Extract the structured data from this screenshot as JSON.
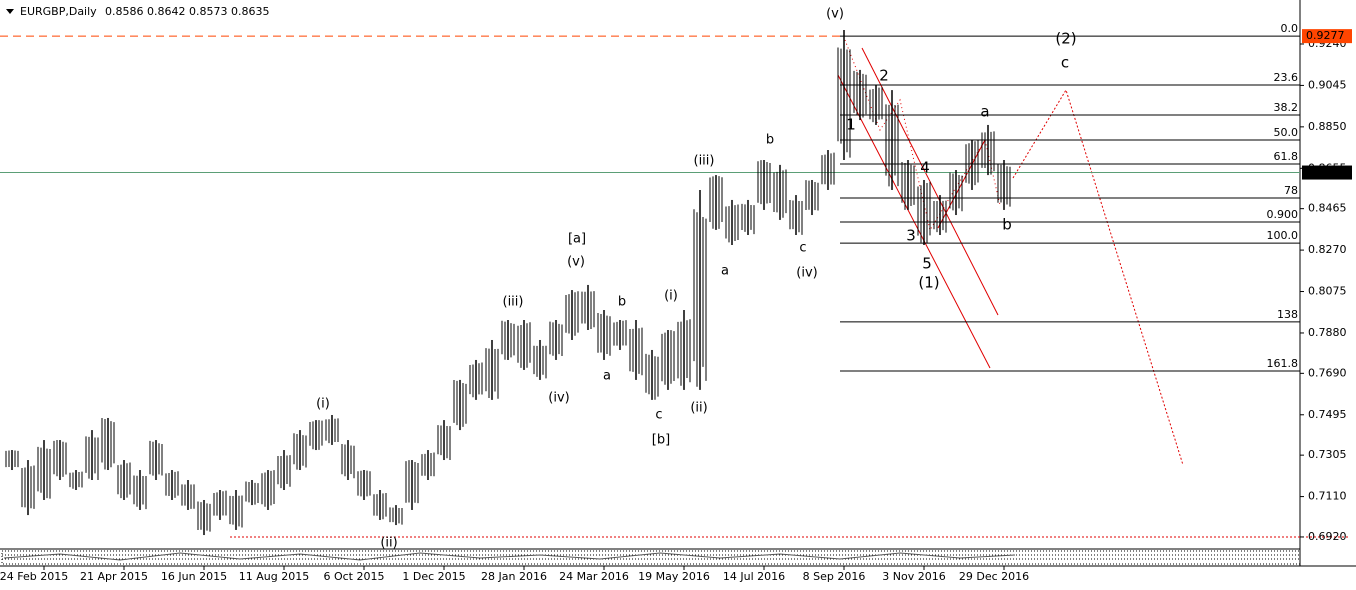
{
  "chart_data": {
    "type": "hilo",
    "symbol": "EURGBP,Daily",
    "ohlc": [
      0.8586,
      0.8642,
      0.8573,
      0.8635
    ],
    "categories": [
      null,
      null,
      "24 Feb 2015",
      null,
      null,
      null,
      null,
      "21 Apr 2015",
      null,
      null,
      null,
      null,
      "16 Jun 2015",
      null,
      null,
      null,
      null,
      "11 Aug 2015",
      null,
      null,
      null,
      null,
      "6 Oct 2015",
      null,
      null,
      null,
      null,
      "1 Dec 2015",
      null,
      null,
      null,
      null,
      "28 Jan 2016",
      null,
      null,
      null,
      null,
      "24 Mar 2016",
      null,
      null,
      null,
      null,
      "19 May 2016",
      null,
      null,
      null,
      null,
      "14 Jul 2016",
      null,
      null,
      null,
      null,
      "8 Sep 2016",
      null,
      null,
      null,
      null,
      "3 Nov 2016",
      null,
      null,
      null,
      null,
      "29 Dec 2016"
    ],
    "high": [
      0.7329,
      0.7282,
      0.7376,
      0.7376,
      0.7235,
      0.7423,
      0.748,
      0.7282,
      0.7235,
      0.7376,
      0.7235,
      0.7188,
      0.7094,
      0.7141,
      0.7141,
      0.7188,
      0.7235,
      0.7329,
      0.7423,
      0.747,
      0.7494,
      0.7376,
      0.7235,
      0.7141,
      0.707,
      0.7282,
      0.7329,
      0.747,
      0.7659,
      0.7753,
      0.7847,
      0.7941,
      0.7941,
      0.7847,
      0.7941,
      0.8082,
      0.8106,
      0.7988,
      0.7941,
      0.7941,
      0.78,
      0.7894,
      0.7988,
      0.8553,
      0.8623,
      0.8506,
      0.8506,
      0.8694,
      0.8671,
      0.8529,
      0.86,
      0.8741,
      0.9306,
      0.9118,
      0.9047,
      0.9023,
      0.8694,
      0.86,
      0.8529,
      0.8647,
      0.8788,
      0.8859,
      0.8694
    ],
    "low": [
      0.7235,
      0.7023,
      0.7094,
      0.7188,
      0.7141,
      0.7188,
      0.7235,
      0.7094,
      0.7047,
      0.7188,
      0.7094,
      0.7047,
      0.6929,
      0.7,
      0.6953,
      0.707,
      0.7047,
      0.7141,
      0.7235,
      0.7329,
      0.7353,
      0.7188,
      0.7094,
      0.7,
      0.6976,
      0.7047,
      0.7188,
      0.7282,
      0.7423,
      0.7565,
      0.7565,
      0.7753,
      0.7706,
      0.7659,
      0.7753,
      0.7847,
      0.7894,
      0.7753,
      0.78,
      0.7659,
      0.7565,
      0.7612,
      0.7612,
      0.7612,
      0.8365,
      0.8294,
      0.8341,
      0.8459,
      0.8412,
      0.8341,
      0.8435,
      0.8553,
      0.8694,
      0.8882,
      0.8859,
      0.8553,
      0.8459,
      0.8294,
      0.8341,
      0.8435,
      0.8553,
      0.8623,
      0.8459
    ],
    "color": "#000000",
    "ylim": [
      0.6868,
      0.9447
    ],
    "yticks": [
      {
        "value": 0.924,
        "label": "0.9240"
      },
      {
        "value": 0.9045,
        "label": "0.9045"
      },
      {
        "value": 0.885,
        "label": "0.8850"
      },
      {
        "value": 0.8655,
        "label": "0.8655"
      },
      {
        "value": 0.8465,
        "label": "0.8465"
      },
      {
        "value": 0.827,
        "label": "0.8270"
      },
      {
        "value": 0.8075,
        "label": "0.8075"
      },
      {
        "value": 0.788,
        "label": "0.7880"
      },
      {
        "value": 0.769,
        "label": "0.7690"
      },
      {
        "value": 0.7495,
        "label": "0.7495"
      },
      {
        "value": 0.7305,
        "label": "0.7305"
      },
      {
        "value": 0.711,
        "label": "0.7110"
      },
      {
        "value": 0.692,
        "label": "0.6920"
      }
    ],
    "current_price": {
      "value": 0.8635,
      "label": "0.8635",
      "color": "#5b9e76"
    },
    "target_price": {
      "value": 0.9277,
      "label": "0.9277",
      "color": "#ff4500"
    },
    "fib_levels": [
      {
        "value": 0.9277,
        "label": "0.0"
      },
      {
        "value": 0.9047,
        "label": "23.6"
      },
      {
        "value": 0.8906,
        "label": "38.2"
      },
      {
        "value": 0.8788,
        "label": "50.0"
      },
      {
        "value": 0.8675,
        "label": "61.8"
      },
      {
        "value": 0.8515,
        "label": "78"
      },
      {
        "value": 0.8402,
        "label": "0.900"
      },
      {
        "value": 0.8303,
        "label": "100.0"
      },
      {
        "value": 0.7932,
        "label": "138"
      },
      {
        "value": 0.7701,
        "label": "161.8"
      }
    ],
    "annotations": [
      {
        "text": "(v)",
        "color": "#2e8b2e"
      },
      {
        "text": "(2)",
        "color": "#3cb83c"
      },
      {
        "text": "c",
        "color": "#e00000"
      },
      {
        "text": "2",
        "color": "#e00000"
      },
      {
        "text": "a",
        "color": "#e00000"
      },
      {
        "text": "1",
        "color": "#e00000"
      },
      {
        "text": "b",
        "color": "#0000cc"
      },
      {
        "text": "(iii)",
        "color": "#2e8b2e"
      },
      {
        "text": "4",
        "color": "#e00000"
      },
      {
        "text": "[a]",
        "color": "#e00000"
      },
      {
        "text": "3",
        "color": "#e00000"
      },
      {
        "text": "b",
        "color": "#e00000"
      },
      {
        "text": "c",
        "color": "#0000cc"
      },
      {
        "text": "(v)",
        "color": "#2e8b2e"
      },
      {
        "text": "5",
        "color": "#e00000"
      },
      {
        "text": "a",
        "color": "#0000cc"
      },
      {
        "text": "(iv)",
        "color": "#2e8b2e"
      },
      {
        "text": "(1)",
        "color": "#3cb83c"
      },
      {
        "text": "(iii)",
        "color": "#2e8b2e"
      },
      {
        "text": "b",
        "color": "#0000cc"
      },
      {
        "text": "(i)",
        "color": "#2e8b2e"
      },
      {
        "text": "a",
        "color": "#0000cc"
      },
      {
        "text": "(iv)",
        "color": "#2e8b2e"
      },
      {
        "text": "(ii)",
        "color": "#2e8b2e"
      },
      {
        "text": "(i)",
        "color": "#2e8b2e"
      },
      {
        "text": "c",
        "color": "#0000cc"
      },
      {
        "text": "[b]",
        "color": "#e00000"
      },
      {
        "text": "(ii)",
        "color": "#2e8b2e"
      }
    ]
  }
}
